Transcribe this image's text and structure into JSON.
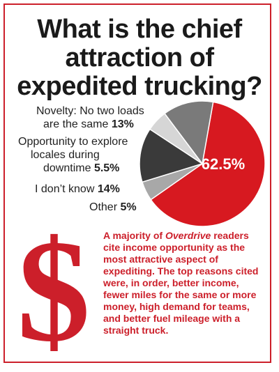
{
  "title": "What is the chief\nattraction of\nexpedited trucking?",
  "chart_data": {
    "type": "pie",
    "slices": [
      {
        "label_lines": [
          "",
          ""
        ],
        "value_text": "62.5%",
        "value": 62.5,
        "color": "#d71920"
      },
      {
        "label_lines": [
          "Other",
          ""
        ],
        "value_text": "5%",
        "value": 5,
        "color": "#a8a8a8"
      },
      {
        "label_lines": [
          "I don’t know",
          ""
        ],
        "value_text": "14%",
        "value": 14,
        "color": "#3a3a3a"
      },
      {
        "label_lines": [
          "Opportunity to explore",
          "locales during",
          "downtime"
        ],
        "value_text": "5.5%",
        "value": 5.5,
        "color": "#d6d6d6"
      },
      {
        "label_lines": [
          "Novelty: No two loads",
          "are the same"
        ],
        "value_text": "13%",
        "value": 13,
        "color": "#7a7a7a"
      }
    ]
  },
  "labels": {
    "novelty_line1": "Novelty: No two loads",
    "novelty_line2": "are the same",
    "novelty_value": "13%",
    "opportunity_line1": "Opportunity to explore",
    "opportunity_line2": "locales during",
    "opportunity_line3": "downtime",
    "opportunity_value": "5.5%",
    "dontknow_line": "I don’t know",
    "dontknow_value": "14%",
    "other_line": "Other",
    "other_value": "5%",
    "main_value": "62.5%"
  },
  "dollar_symbol": "$",
  "body": {
    "part1": "A majority of ",
    "italic": "Overdrive",
    "part2": " readers cite income opportunity as the most attractive aspect of expediting. The top reasons cited were, in order, better income, fewer miles for the same or more money, high demand for teams, and better fuel mileage with a straight truck."
  }
}
